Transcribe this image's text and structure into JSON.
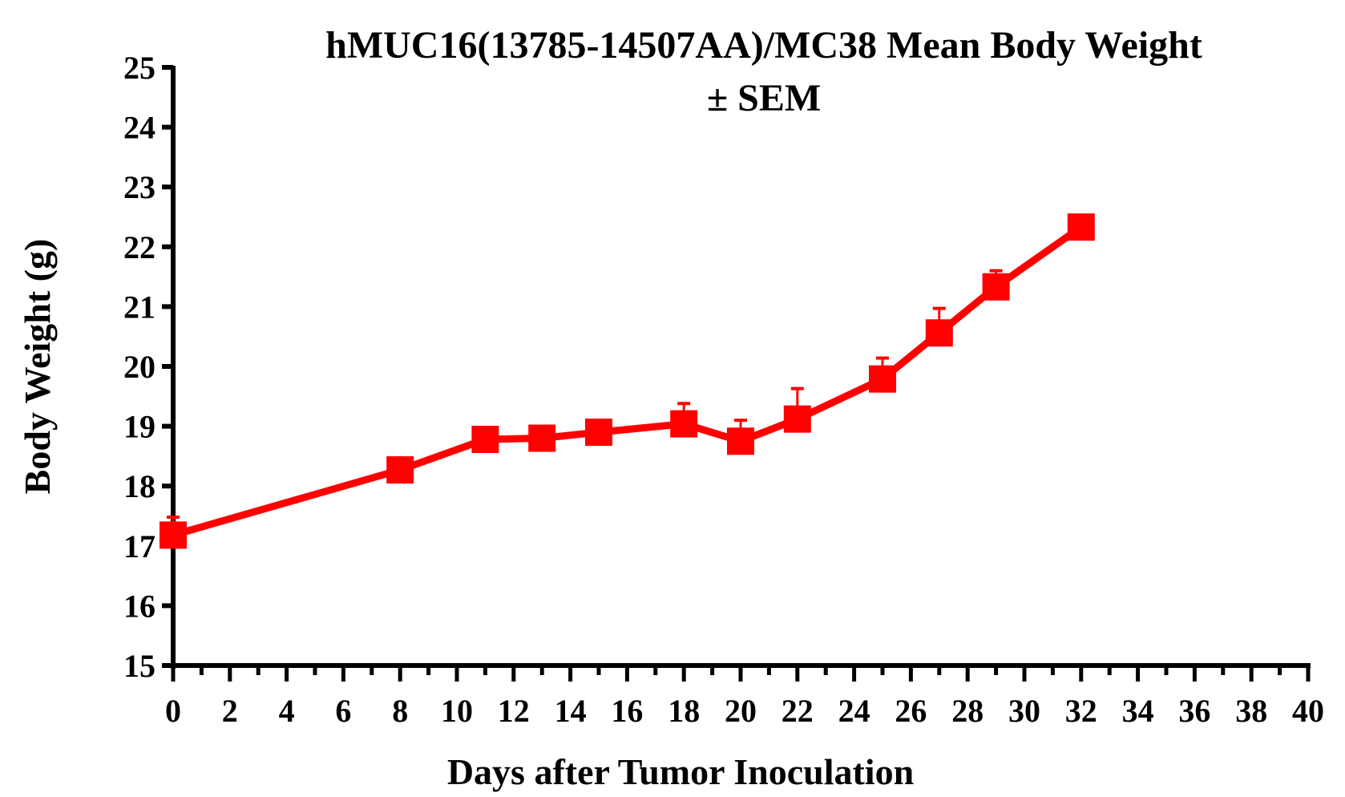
{
  "chart_data": {
    "type": "line",
    "title_line1": "hMUC16(13785-14507AA)/MC38 Mean Body Weight",
    "title_line2": "± SEM",
    "xlabel": "Days after Tumor Inoculation",
    "ylabel": "Body Weight (g)",
    "xlim": [
      0,
      40
    ],
    "ylim": [
      15,
      25
    ],
    "x_ticks": [
      "0",
      "2",
      "4",
      "6",
      "8",
      "10",
      "12",
      "14",
      "16",
      "18",
      "20",
      "22",
      "24",
      "26",
      "28",
      "30",
      "32",
      "34",
      "36",
      "38",
      "40"
    ],
    "y_ticks": [
      "15",
      "16",
      "17",
      "18",
      "19",
      "20",
      "21",
      "22",
      "23",
      "24",
      "25"
    ],
    "grid": false,
    "legend": "none",
    "series": [
      {
        "color": "#ff0000",
        "marker": "square",
        "x": [
          0,
          8,
          11,
          13,
          15,
          18,
          20,
          22,
          25,
          27,
          29,
          32
        ],
        "y": [
          17.18,
          18.27,
          18.78,
          18.8,
          18.9,
          19.04,
          18.75,
          19.12,
          19.79,
          20.56,
          21.33,
          22.33
        ],
        "sem": [
          0.3,
          0.1,
          0.1,
          0.1,
          0.1,
          0.34,
          0.35,
          0.51,
          0.35,
          0.41,
          0.27,
          0.1
        ]
      }
    ]
  }
}
